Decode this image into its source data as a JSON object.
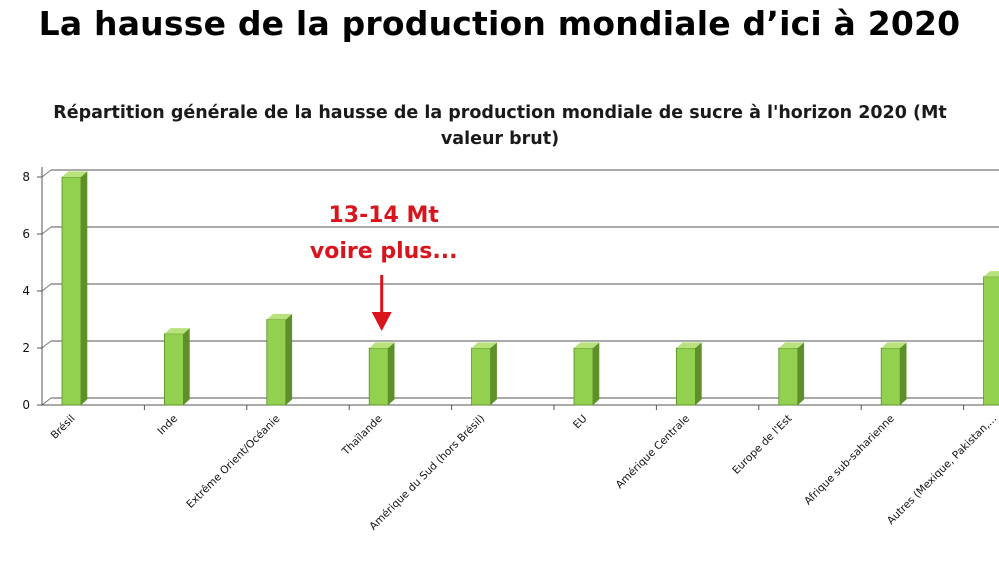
{
  "slide": {
    "title": "La hausse de la production mondiale d’ici à 2020"
  },
  "chart_data": {
    "type": "bar",
    "title": "Répartition générale de la hausse de la production mondiale de sucre à l'horizon 2020 (Mt valeur brut)",
    "title_lines": [
      "Répartition générale de la hausse de la production mondiale de sucre à l'horizon 2020 (Mt",
      "valeur brut)"
    ],
    "xlabel": "",
    "ylabel": "",
    "ylim": [
      0,
      8
    ],
    "yticks": [
      0,
      2,
      4,
      6,
      8
    ],
    "grid": true,
    "legend": "none",
    "bar_style": "3d",
    "bar_color": "#92d050",
    "categories": [
      "Brésil",
      "Inde",
      "Extrême Orient/Océanie",
      "Thaïlande",
      "Amérique du Sud (hors Brésil)",
      "EU",
      "Amérique Centrale",
      "Europe de l'Est",
      "Afrique sub-saharienne",
      "Autres (Mexique, Pakistan,..."
    ],
    "values": [
      8,
      2.5,
      3,
      2,
      2,
      2,
      2,
      2,
      2,
      4.5
    ],
    "annotation": {
      "lines": [
        "13-14 Mt",
        "voire plus..."
      ],
      "target_category": "Thaïlande",
      "color": "#d9141c"
    }
  }
}
